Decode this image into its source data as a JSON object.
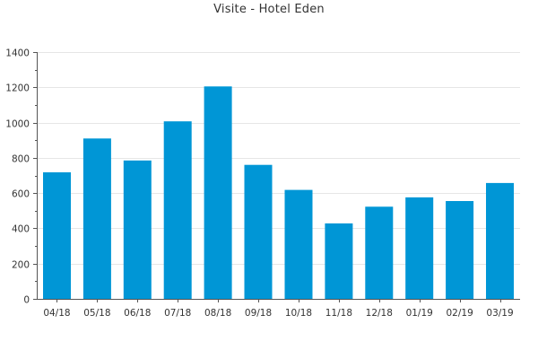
{
  "chart_data": {
    "type": "bar",
    "title": "Visite - Hotel Eden",
    "xlabel": "",
    "ylabel": "",
    "categories": [
      "04/18",
      "05/18",
      "06/18",
      "07/18",
      "08/18",
      "09/18",
      "10/18",
      "11/18",
      "12/18",
      "01/19",
      "02/19",
      "03/19"
    ],
    "values": [
      718,
      910,
      785,
      1007,
      1205,
      760,
      618,
      428,
      523,
      576,
      555,
      657
    ],
    "ylim": [
      0,
      1400
    ],
    "yticks": [
      0,
      200,
      400,
      600,
      800,
      1000,
      1200,
      1400
    ],
    "grid": true,
    "legend": "none",
    "bar_color": "#0096d6",
    "grid_color": "#e6e6e6",
    "axis_color": "#555555"
  }
}
